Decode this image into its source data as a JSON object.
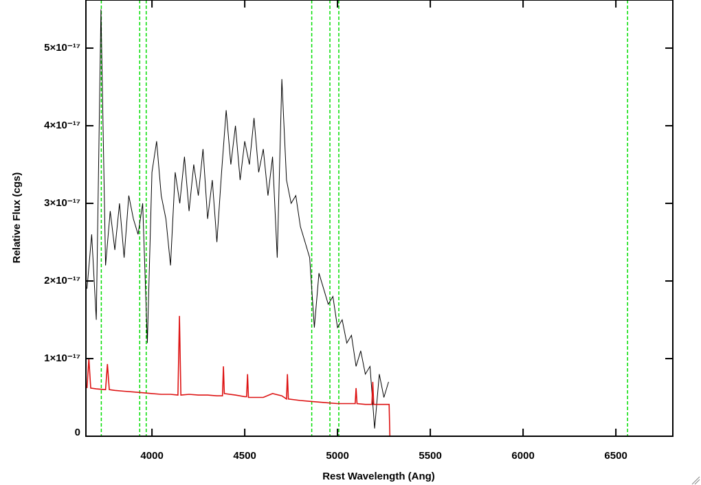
{
  "chart_data": {
    "type": "line",
    "xlabel": "Rest Wavelength (Ang)",
    "ylabel": "Relative Flux (cgs)",
    "xlim": [
      3644,
      6807
    ],
    "ylim": [
      0,
      5.62e-17
    ],
    "xticks": [
      4000,
      4500,
      5000,
      5500,
      6000,
      6500
    ],
    "yticks": [
      0,
      {
        "value": 1e-17,
        "label": "1×10⁻¹⁷"
      },
      {
        "value": 2e-17,
        "label": "2×10⁻¹⁷"
      },
      {
        "value": 3e-17,
        "label": "3×10⁻¹⁷"
      },
      {
        "value": 4e-17,
        "label": "4×10⁻¹⁷"
      },
      {
        "value": 5e-17,
        "label": "5×10⁻¹⁷"
      }
    ],
    "vlines": {
      "color": "#00dd00",
      "dashed": true,
      "x": [
        3727,
        3934,
        3969,
        4861,
        4959,
        5007,
        6563
      ]
    },
    "series": [
      {
        "color": "#000000",
        "x": [
          3650,
          3675,
          3700,
          3725,
          3750,
          3775,
          3800,
          3825,
          3850,
          3875,
          3900,
          3925,
          3950,
          3975,
          4000,
          4025,
          4050,
          4075,
          4100,
          4125,
          4150,
          4175,
          4200,
          4225,
          4250,
          4275,
          4300,
          4325,
          4350,
          4375,
          4400,
          4425,
          4450,
          4475,
          4500,
          4525,
          4550,
          4575,
          4600,
          4625,
          4650,
          4675,
          4700,
          4725,
          4750,
          4775,
          4800,
          4825,
          4850,
          4875,
          4900,
          4925,
          4950,
          4975,
          5000,
          5025,
          5050,
          5075,
          5100,
          5125,
          5150,
          5175,
          5200,
          5225,
          5250,
          5275
        ],
        "values": [
          1.9e-17,
          2.6e-17,
          1.5e-17,
          5.5e-17,
          2.2e-17,
          2.9e-17,
          2.4e-17,
          3e-17,
          2.3e-17,
          3.1e-17,
          2.8e-17,
          2.6e-17,
          3e-17,
          1.2e-17,
          3.4e-17,
          3.8e-17,
          3.1e-17,
          2.8e-17,
          2.2e-17,
          3.4e-17,
          3e-17,
          3.6e-17,
          2.9e-17,
          3.5e-17,
          3.1e-17,
          3.7e-17,
          2.8e-17,
          3.3e-17,
          2.5e-17,
          3.4e-17,
          4.2e-17,
          3.5e-17,
          4e-17,
          3.3e-17,
          3.8e-17,
          3.5e-17,
          4.1e-17,
          3.4e-17,
          3.7e-17,
          3.1e-17,
          3.6e-17,
          2.3e-17,
          4.6e-17,
          3.3e-17,
          3e-17,
          3.1e-17,
          2.7e-17,
          2.5e-17,
          2.3e-17,
          1.4e-17,
          2.1e-17,
          1.9e-17,
          1.7e-17,
          1.8e-17,
          1.4e-17,
          1.5e-17,
          1.2e-17,
          1.3e-17,
          9e-18,
          1.1e-17,
          8e-18,
          9e-18,
          1e-18,
          8e-18,
          5e-18,
          7e-18
        ]
      },
      {
        "color": "#dd1111",
        "x": [
          3650,
          3660,
          3670,
          3700,
          3750,
          3760,
          3770,
          3800,
          3850,
          3900,
          3950,
          4000,
          4050,
          4100,
          4140,
          4148,
          4156,
          4200,
          4250,
          4300,
          4350,
          4380,
          4385,
          4390,
          4450,
          4500,
          4510,
          4515,
          4520,
          4600,
          4650,
          4700,
          4725,
          4730,
          4735,
          4800,
          4850,
          4900,
          4950,
          5000,
          5050,
          5095,
          5100,
          5105,
          5150,
          5185,
          5190,
          5195,
          5250,
          5278,
          5282,
          6807
        ],
        "values": [
          6.2e-18,
          1e-17,
          6.2e-18,
          6.1e-18,
          6e-18,
          9.3e-18,
          6e-18,
          5.9e-18,
          5.8e-18,
          5.7e-18,
          5.6e-18,
          5.5e-18,
          5.4e-18,
          5.4e-18,
          5.3e-18,
          1.55e-17,
          5.3e-18,
          5.4e-18,
          5.3e-18,
          5.3e-18,
          5.2e-18,
          5.2e-18,
          9e-18,
          5.5e-18,
          5.3e-18,
          5.1e-18,
          5.1e-18,
          8e-18,
          5e-18,
          5e-18,
          5.5e-18,
          5.2e-18,
          4.8e-18,
          8e-18,
          4.8e-18,
          4.6e-18,
          4.5e-18,
          4.4e-18,
          4.3e-18,
          4.2e-18,
          4.2e-18,
          4.2e-18,
          6.2e-18,
          4.2e-18,
          4.1e-18,
          4.1e-18,
          7e-18,
          4.1e-18,
          4.1e-18,
          4.1e-18,
          0,
          0
        ]
      }
    ]
  }
}
